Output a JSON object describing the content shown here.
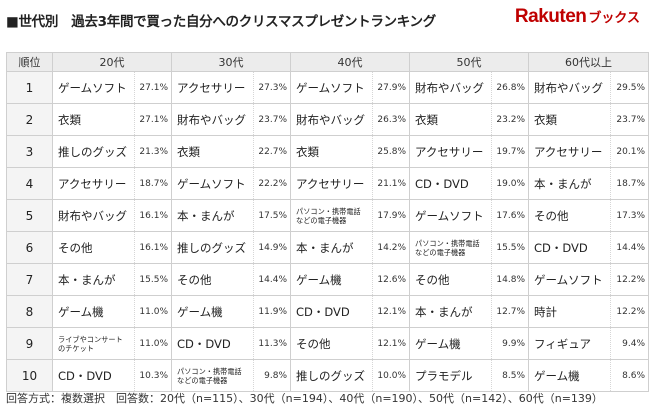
{
  "title": "■世代別　過去3年間で買った自分へのクリスマスプレゼントランキング",
  "brand": {
    "logo": "Rakuten",
    "suffix": "ブックス",
    "color": "#bf0000"
  },
  "chart_data": {
    "type": "table",
    "columns": [
      "順位",
      "20代",
      "30代",
      "40代",
      "50代",
      "60代以上"
    ],
    "ranks": [
      "1",
      "2",
      "3",
      "4",
      "5",
      "6",
      "7",
      "8",
      "9",
      "10"
    ],
    "groups": [
      {
        "name": "20代",
        "rows": [
          {
            "item": "ゲームソフト",
            "pct": "27.1%"
          },
          {
            "item": "衣類",
            "pct": "27.1%"
          },
          {
            "item": "推しのグッズ",
            "pct": "21.3%"
          },
          {
            "item": "アクセサリー",
            "pct": "18.7%"
          },
          {
            "item": "財布やバッグ",
            "pct": "16.1%"
          },
          {
            "item": "その他",
            "pct": "16.1%"
          },
          {
            "item": "本・まんが",
            "pct": "15.5%"
          },
          {
            "item": "ゲーム機",
            "pct": "11.0%"
          },
          {
            "item": "ライブやコンサート\nのチケット",
            "pct": "11.0%",
            "small": true
          },
          {
            "item": "CD・DVD",
            "pct": "10.3%"
          }
        ]
      },
      {
        "name": "30代",
        "rows": [
          {
            "item": "アクセサリー",
            "pct": "27.3%"
          },
          {
            "item": "財布やバッグ",
            "pct": "23.7%"
          },
          {
            "item": "衣類",
            "pct": "22.7%"
          },
          {
            "item": "ゲームソフト",
            "pct": "22.2%"
          },
          {
            "item": "本・まんが",
            "pct": "17.5%"
          },
          {
            "item": "推しのグッズ",
            "pct": "14.9%"
          },
          {
            "item": "その他",
            "pct": "14.4%"
          },
          {
            "item": "ゲーム機",
            "pct": "11.9%"
          },
          {
            "item": "CD・DVD",
            "pct": "11.3%"
          },
          {
            "item": "パソコン・携帯電話\nなどの電子機器",
            "pct": "9.8%",
            "small": true
          }
        ]
      },
      {
        "name": "40代",
        "rows": [
          {
            "item": "ゲームソフト",
            "pct": "27.9%"
          },
          {
            "item": "財布やバッグ",
            "pct": "26.3%"
          },
          {
            "item": "衣類",
            "pct": "25.8%"
          },
          {
            "item": "アクセサリー",
            "pct": "21.1%"
          },
          {
            "item": "パソコン・携帯電話\nなどの電子機器",
            "pct": "17.9%",
            "small": true
          },
          {
            "item": "本・まんが",
            "pct": "14.2%"
          },
          {
            "item": "ゲーム機",
            "pct": "12.6%"
          },
          {
            "item": "CD・DVD",
            "pct": "12.1%"
          },
          {
            "item": "その他",
            "pct": "12.1%"
          },
          {
            "item": "推しのグッズ",
            "pct": "10.0%"
          }
        ]
      },
      {
        "name": "50代",
        "rows": [
          {
            "item": "財布やバッグ",
            "pct": "26.8%"
          },
          {
            "item": "衣類",
            "pct": "23.2%"
          },
          {
            "item": "アクセサリー",
            "pct": "19.7%"
          },
          {
            "item": "CD・DVD",
            "pct": "19.0%"
          },
          {
            "item": "ゲームソフト",
            "pct": "17.6%"
          },
          {
            "item": "パソコン・携帯電話\nなどの電子機器",
            "pct": "15.5%",
            "small": true
          },
          {
            "item": "その他",
            "pct": "14.8%"
          },
          {
            "item": "本・まんが",
            "pct": "12.7%"
          },
          {
            "item": "ゲーム機",
            "pct": "9.9%"
          },
          {
            "item": "プラモデル",
            "pct": "8.5%"
          }
        ]
      },
      {
        "name": "60代以上",
        "rows": [
          {
            "item": "財布やバッグ",
            "pct": "29.5%"
          },
          {
            "item": "衣類",
            "pct": "23.7%"
          },
          {
            "item": "アクセサリー",
            "pct": "20.1%"
          },
          {
            "item": "本・まんが",
            "pct": "18.7%"
          },
          {
            "item": "その他",
            "pct": "17.3%"
          },
          {
            "item": "CD・DVD",
            "pct": "14.4%"
          },
          {
            "item": "ゲームソフト",
            "pct": "12.2%"
          },
          {
            "item": "時計",
            "pct": "12.2%"
          },
          {
            "item": "フィギュア",
            "pct": "9.4%"
          },
          {
            "item": "ゲーム機",
            "pct": "8.6%"
          }
        ]
      }
    ]
  },
  "footer": "回答方式：複数選択　回答数：20代（n=115）、30代（n=194）、40代（n=190）、50代（n=142）、60代（n=139）"
}
